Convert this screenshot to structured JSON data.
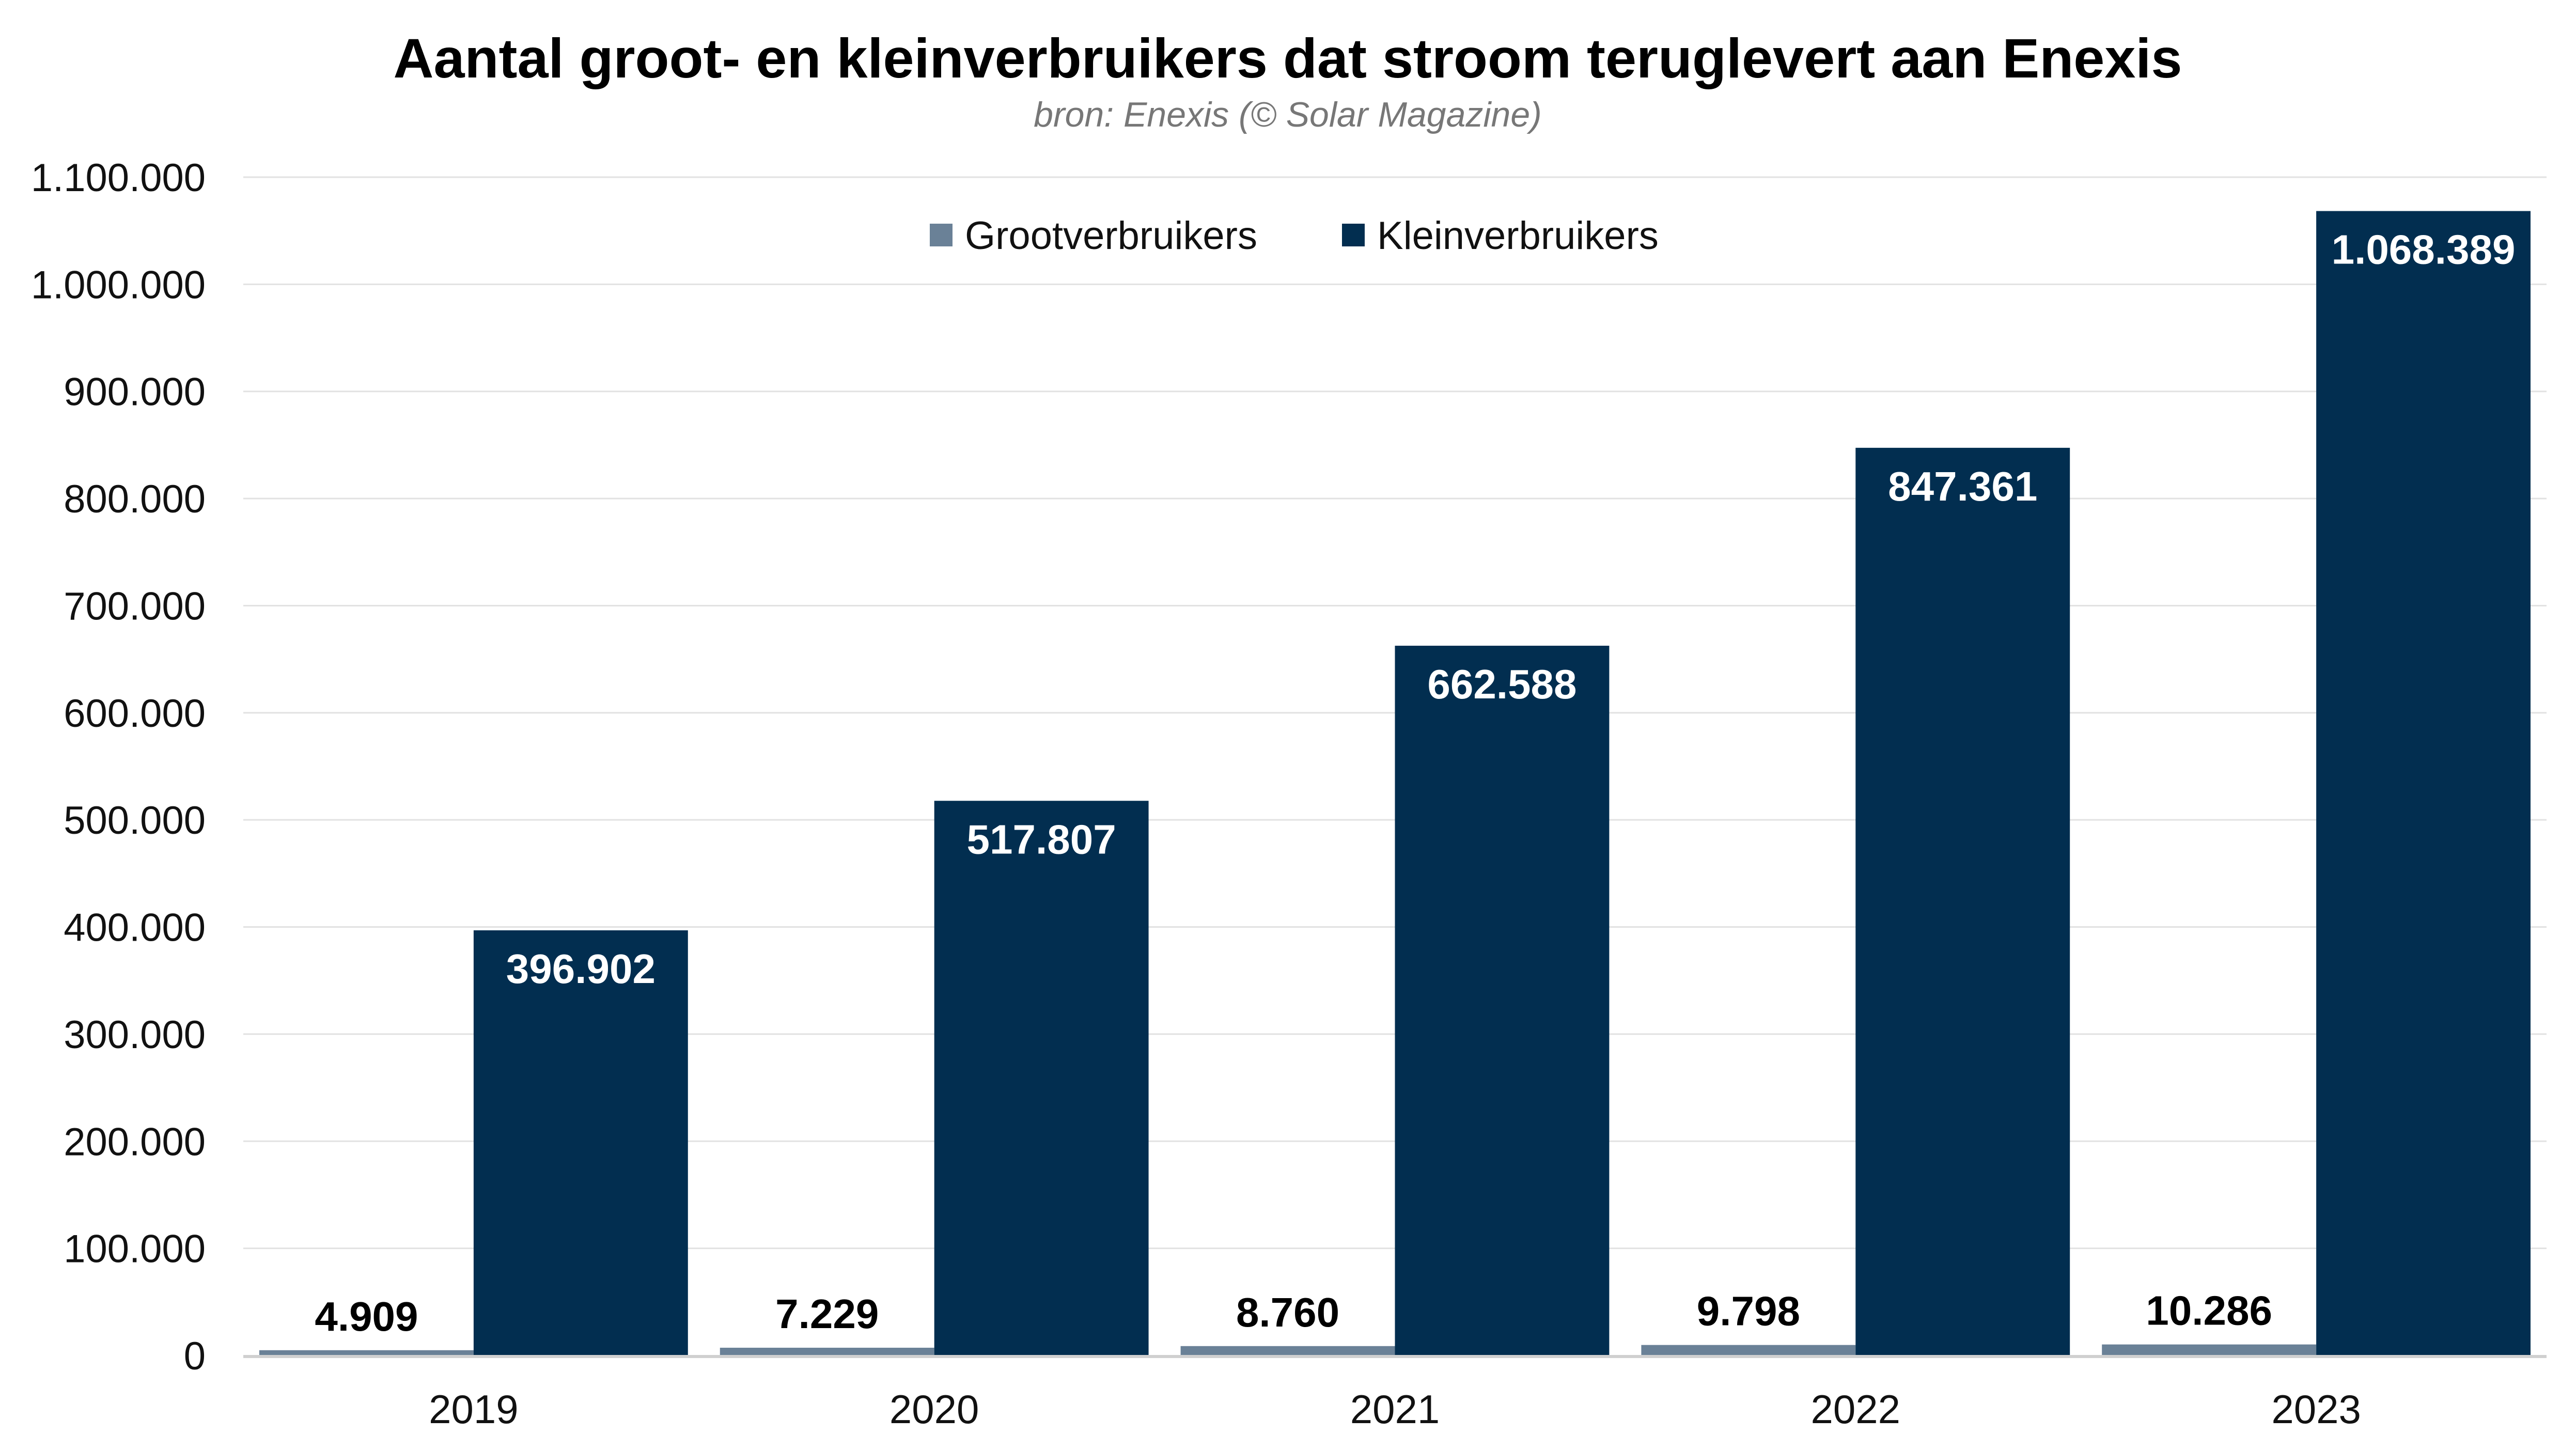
{
  "chart_data": {
    "type": "bar",
    "title": "Aantal groot- en kleinverbruikers dat stroom teruglevert aan Enexis",
    "subtitle": "bron: Enexis (© Solar Magazine)",
    "xlabel": "",
    "ylabel": "",
    "categories": [
      "2019",
      "2020",
      "2021",
      "2022",
      "2023"
    ],
    "series": [
      {
        "name": "Grootverbruikers",
        "color": "#6a8197",
        "values": [
          4909,
          7229,
          8760,
          9798,
          10286
        ],
        "labels": [
          "4.909",
          "7.229",
          "8.760",
          "9.798",
          "10.286"
        ]
      },
      {
        "name": "Kleinverbruikers",
        "color": "#022e50",
        "values": [
          396902,
          517807,
          662588,
          847361,
          1068389
        ],
        "labels": [
          "396.902",
          "517.807",
          "662.588",
          "847.361",
          "1.068.389"
        ]
      }
    ],
    "ylim": [
      0,
      1100000
    ],
    "yticks": [
      0,
      100000,
      200000,
      300000,
      400000,
      500000,
      600000,
      700000,
      800000,
      900000,
      1000000,
      1100000
    ],
    "ytick_labels": [
      "0",
      "100.000",
      "200.000",
      "300.000",
      "400.000",
      "500.000",
      "600.000",
      "700.000",
      "800.000",
      "900.000",
      "1.000.000",
      "1.100.000"
    ],
    "grid": true,
    "legend_position": "top-center"
  }
}
